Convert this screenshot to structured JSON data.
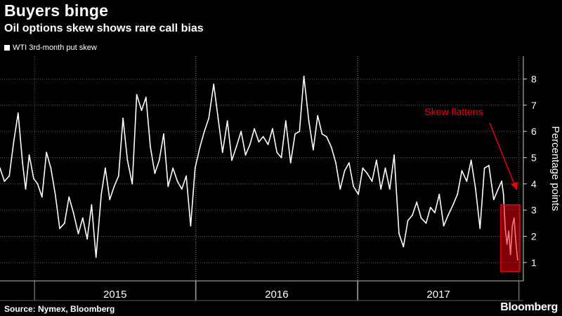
{
  "title": "Buyers binge",
  "subtitle": "Oil options skew shows rare call bias",
  "source": "Source: Nymex, Bloomberg",
  "brand": "Bloomberg",
  "chart_data": {
    "type": "line",
    "legend": [
      "WTI 3rd-month put skew"
    ],
    "ylabel": "Percentage points",
    "ylim": [
      0.3,
      8.6
    ],
    "yticks": [
      1,
      2,
      3,
      4,
      5,
      6,
      7,
      8
    ],
    "xlim": [
      "2014-10-15",
      "2018-01-10"
    ],
    "xbands": [
      {
        "label": "2015",
        "start": "2015-01-01",
        "end": "2015-12-31"
      },
      {
        "label": "2016",
        "start": "2016-01-01",
        "end": "2016-12-31"
      },
      {
        "label": "2017",
        "start": "2017-01-01",
        "end": "2017-12-31"
      }
    ],
    "grid": true,
    "annotation": {
      "text": "Skew flattens",
      "color": "#e8000b"
    },
    "highlight": {
      "x": [
        "2017-11-20",
        "2018-01-02"
      ],
      "y": [
        0.65,
        3.2
      ],
      "color": "#e8000b"
    },
    "series": [
      {
        "name": "WTI 3rd-month put skew",
        "color": "#ffffff",
        "x": [
          "2014-10-15",
          "2014-10-25",
          "2014-11-05",
          "2014-11-15",
          "2014-11-25",
          "2014-12-05",
          "2014-12-12",
          "2014-12-20",
          "2014-12-30",
          "2015-01-08",
          "2015-01-18",
          "2015-01-28",
          "2015-02-07",
          "2015-02-17",
          "2015-02-27",
          "2015-03-10",
          "2015-03-20",
          "2015-03-30",
          "2015-04-10",
          "2015-04-20",
          "2015-04-30",
          "2015-05-10",
          "2015-05-20",
          "2015-06-01",
          "2015-06-10",
          "2015-06-20",
          "2015-06-30",
          "2015-07-10",
          "2015-07-20",
          "2015-07-30",
          "2015-08-10",
          "2015-08-20",
          "2015-08-31",
          "2015-09-10",
          "2015-09-20",
          "2015-09-30",
          "2015-10-10",
          "2015-10-20",
          "2015-10-30",
          "2015-11-10",
          "2015-11-20",
          "2015-11-30",
          "2015-12-10",
          "2015-12-20",
          "2015-12-30",
          "2016-01-10",
          "2016-01-20",
          "2016-01-30",
          "2016-02-10",
          "2016-02-20",
          "2016-03-01",
          "2016-03-12",
          "2016-03-22",
          "2016-04-01",
          "2016-04-12",
          "2016-04-22",
          "2016-05-02",
          "2016-05-12",
          "2016-05-22",
          "2016-06-01",
          "2016-06-12",
          "2016-06-22",
          "2016-07-02",
          "2016-07-12",
          "2016-07-22",
          "2016-08-02",
          "2016-08-12",
          "2016-08-22",
          "2016-09-01",
          "2016-09-12",
          "2016-09-22",
          "2016-10-02",
          "2016-10-12",
          "2016-10-22",
          "2016-11-02",
          "2016-11-12",
          "2016-11-22",
          "2016-12-02",
          "2016-12-12",
          "2016-12-22",
          "2017-01-02",
          "2017-01-12",
          "2017-01-22",
          "2017-02-02",
          "2017-02-12",
          "2017-02-22",
          "2017-03-04",
          "2017-03-14",
          "2017-03-24",
          "2017-04-04",
          "2017-04-14",
          "2017-04-24",
          "2017-05-04",
          "2017-05-14",
          "2017-05-24",
          "2017-06-04",
          "2017-06-14",
          "2017-06-24",
          "2017-07-04",
          "2017-07-14",
          "2017-07-24",
          "2017-08-04",
          "2017-08-14",
          "2017-08-24",
          "2017-09-04",
          "2017-09-14",
          "2017-09-24",
          "2017-10-04",
          "2017-10-14",
          "2017-10-24",
          "2017-11-04",
          "2017-11-14",
          "2017-11-22",
          "2017-11-26",
          "2017-11-30",
          "2017-12-04",
          "2017-12-08",
          "2017-12-12",
          "2017-12-16",
          "2017-12-20",
          "2017-12-24",
          "2017-12-28"
        ],
        "y": [
          4.6,
          4.1,
          4.3,
          5.6,
          6.7,
          4.8,
          3.8,
          5.1,
          4.2,
          4.0,
          3.5,
          5.2,
          4.6,
          3.6,
          2.3,
          2.5,
          3.5,
          2.9,
          2.1,
          2.7,
          1.9,
          3.2,
          1.2,
          3.6,
          4.6,
          3.4,
          3.9,
          4.3,
          6.5,
          4.9,
          4.0,
          7.4,
          6.8,
          7.3,
          5.4,
          4.4,
          4.9,
          5.9,
          3.9,
          4.6,
          4.1,
          3.8,
          4.3,
          2.4,
          4.6,
          5.4,
          6.0,
          6.5,
          7.8,
          6.5,
          5.2,
          6.4,
          4.9,
          5.4,
          6.0,
          5.1,
          5.5,
          6.1,
          5.6,
          5.8,
          5.5,
          6.1,
          5.2,
          5.0,
          6.4,
          4.8,
          5.9,
          6.0,
          8.1,
          6.4,
          5.3,
          6.6,
          5.9,
          5.8,
          5.4,
          4.8,
          3.8,
          4.5,
          4.8,
          3.9,
          3.6,
          4.6,
          4.4,
          4.1,
          4.9,
          3.8,
          4.6,
          3.8,
          5.1,
          2.1,
          1.6,
          2.6,
          2.8,
          3.3,
          2.7,
          2.5,
          3.1,
          2.9,
          3.6,
          2.4,
          2.8,
          3.2,
          3.6,
          4.5,
          4.1,
          4.9,
          3.8,
          2.3,
          4.6,
          4.7,
          3.4,
          3.8,
          4.1,
          3.6,
          2.3,
          1.7,
          2.2,
          1.3,
          2.4,
          2.7,
          1.8,
          1.1
        ]
      }
    ]
  }
}
